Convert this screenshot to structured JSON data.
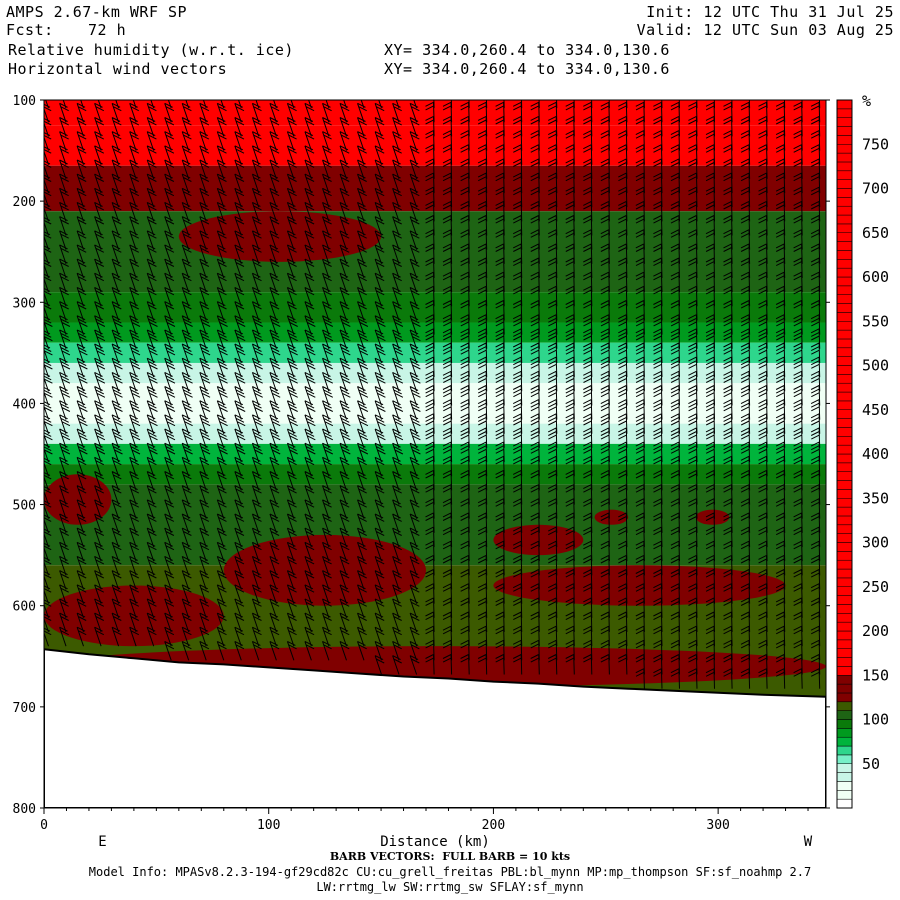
{
  "header": {
    "model": "AMPS 2.67-km WRF SP",
    "fcst_label": "Fcst:",
    "fcst_value": "72 h",
    "init": "Init: 12 UTC Thu 31 Jul 25",
    "valid": "Valid: 12 UTC Sun 03 Aug 25",
    "field1": "Relative humidity (w.r.t. ice)",
    "field2": "Horizontal wind vectors",
    "xy1": "XY= 334.0,260.4 to 334.0,130.6",
    "xy2": "XY= 334.0,260.4 to 334.0,130.6"
  },
  "footer": {
    "barb_note": "BARB VECTORS:  FULL BARB = 10 kts",
    "model_info": "Model Info: MPASv8.2.3-194-gf29cd82c CU:cu_grell_freitas PBL:bl_mynn MP:mp_thompson SF:sf_noahmp 2.7",
    "model_info2": "LW:rrtmg_lw SW:rrtmg_sw SFLAY:sf_mynn"
  },
  "chart_data": {
    "type": "heatmap",
    "xlabel": "Distance (km)",
    "ylabel": "",
    "x_range": [
      0,
      348
    ],
    "y_range": [
      100,
      800
    ],
    "y_inverted": true,
    "x_ticks": [
      "0",
      "100",
      "200",
      "300"
    ],
    "x_tick_values": [
      0,
      100,
      200,
      300
    ],
    "y_ticks": [
      "100",
      "200",
      "300",
      "400",
      "500",
      "600",
      "700",
      "800"
    ],
    "y_tick_values": [
      100,
      200,
      300,
      400,
      500,
      600,
      700,
      800
    ],
    "left_end_label": "E",
    "right_end_label": "W",
    "colorbar": {
      "unit": "%",
      "labels": [
        "750",
        "700",
        "650",
        "600",
        "550",
        "500",
        "450",
        "400",
        "350",
        "300",
        "250",
        "200",
        "150",
        "100",
        "50"
      ],
      "label_values": [
        750,
        700,
        650,
        600,
        550,
        500,
        450,
        400,
        350,
        300,
        250,
        200,
        150,
        100,
        50
      ],
      "range": [
        0,
        800
      ],
      "colors": [
        "#ffffff",
        "#f0fff5",
        "#c8f5e6",
        "#78f0c8",
        "#2ed68c",
        "#00b43c",
        "#009a1e",
        "#0a7a0a",
        "#1e6414",
        "#3c5a00",
        "#800000",
        "#ff0000"
      ]
    },
    "terrain": {
      "distance": [
        0,
        20,
        40,
        60,
        80,
        100,
        120,
        140,
        160,
        180,
        200,
        220,
        240,
        260,
        280,
        300,
        320,
        348
      ],
      "pressure": [
        643,
        648,
        652,
        656,
        658,
        661,
        664,
        667,
        670,
        672,
        675,
        677,
        680,
        682,
        684,
        686,
        688,
        690
      ]
    },
    "bands": [
      {
        "p_top": 100,
        "p_bottom": 125,
        "rh": 160
      },
      {
        "p_top": 125,
        "p_bottom": 165,
        "rh": 150
      },
      {
        "p_top": 165,
        "p_bottom": 210,
        "rh": 120
      },
      {
        "p_top": 210,
        "p_bottom": 290,
        "rh": 100
      },
      {
        "p_top": 290,
        "p_bottom": 320,
        "rh": 95
      },
      {
        "p_top": 320,
        "p_bottom": 340,
        "rh": 80
      },
      {
        "p_top": 340,
        "p_bottom": 360,
        "rh": 65
      },
      {
        "p_top": 360,
        "p_bottom": 380,
        "rh": 45
      },
      {
        "p_top": 380,
        "p_bottom": 420,
        "rh": 20
      },
      {
        "p_top": 420,
        "p_bottom": 440,
        "rh": 40
      },
      {
        "p_top": 440,
        "p_bottom": 460,
        "rh": 70
      },
      {
        "p_top": 460,
        "p_bottom": 480,
        "rh": 95
      },
      {
        "p_top": 480,
        "p_bottom": 560,
        "rh": 100
      },
      {
        "p_top": 560,
        "p_bottom": 700,
        "rh": 110
      }
    ],
    "blobs": [
      {
        "x": [
          60,
          150
        ],
        "p": [
          210,
          260
        ],
        "rh": 140
      },
      {
        "x": [
          0,
          30
        ],
        "p": [
          470,
          520
        ],
        "rh": 130
      },
      {
        "x": [
          80,
          170
        ],
        "p": [
          530,
          600
        ],
        "rh": 130
      },
      {
        "x": [
          0,
          80
        ],
        "p": [
          580,
          640
        ],
        "rh": 140
      },
      {
        "x": [
          200,
          240
        ],
        "p": [
          520,
          550
        ],
        "rh": 130
      },
      {
        "x": [
          200,
          330
        ],
        "p": [
          560,
          600
        ],
        "rh": 125
      },
      {
        "x": [
          245,
          260
        ],
        "p": [
          505,
          520
        ],
        "rh": 130
      },
      {
        "x": [
          290,
          305
        ],
        "p": [
          505,
          520
        ],
        "rh": 130
      },
      {
        "x": [
          0,
          348
        ],
        "p": [
          640,
          680
        ],
        "rh": 140
      }
    ]
  }
}
